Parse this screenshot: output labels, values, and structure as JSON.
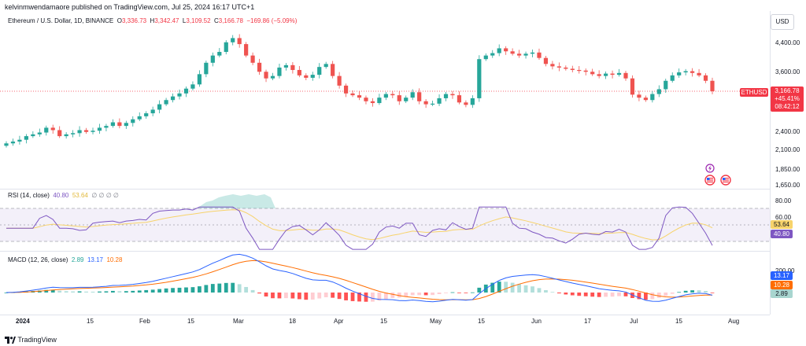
{
  "publisher_line": "kelvinmwendamaore published on TradingView.com, Jul 25, 2024 16:17 UTC+1",
  "main_legend": {
    "symbol": "Ethereum / U.S. Dollar, 1D, BINANCE",
    "o_key": "O",
    "o": "3,336.73",
    "h_key": "H",
    "h": "3,342.47",
    "l_key": "L",
    "l": "3,109.52",
    "c_key": "C",
    "c": "3,166.78",
    "chg": "−169.86 (−5.09%)"
  },
  "currency_button": "USD",
  "price_axis": [
    "4,400.00",
    "3,600.00",
    "2,400.00",
    "2,100.00",
    "1,850.00",
    "1,650.00"
  ],
  "price_tag": {
    "symbol": "ETHUSD",
    "price": "3,166.78",
    "change": "+45.41%",
    "countdown": "08:42:12"
  },
  "rsi": {
    "title": "RSI (14, close)",
    "rsi_val": "40.80",
    "ma_val": "53.64",
    "extras": "∅ ∅ ∅ ∅",
    "axis": [
      "80.00",
      "60.00"
    ],
    "tag_ma": "53.64",
    "tag_rsi": "40.80"
  },
  "macd": {
    "title": "MACD (12, 26, close)",
    "hist": "2.89",
    "macd": "13.17",
    "signal": "10.28",
    "axis": [
      "200.00"
    ],
    "tag_macd": "13.17",
    "tag_signal": "10.28",
    "tag_hist": "2.89"
  },
  "time_axis": [
    "2024",
    "15",
    "Feb",
    "15",
    "Mar",
    "18",
    "Apr",
    "15",
    "May",
    "15",
    "Jun",
    "17",
    "Jul",
    "15",
    "Aug"
  ],
  "footer": "TradingView",
  "colors": {
    "up": "#26a69a",
    "down": "#ef5350",
    "rsi": "#7e57c2",
    "rsi_ma": "#f7d36b",
    "macd": "#2962ff",
    "signal": "#ff6d00"
  },
  "chart_data": {
    "type": "candlestick",
    "symbol": "ETHUSD",
    "close_series": [
      2300,
      2330,
      2360,
      2420,
      2450,
      2480,
      2560,
      2520,
      2420,
      2450,
      2470,
      2520,
      2490,
      2510,
      2560,
      2590,
      2650,
      2590,
      2640,
      2700,
      2750,
      2800,
      2860,
      2950,
      3020,
      3080,
      3130,
      3210,
      3280,
      3450,
      3640,
      3760,
      3820,
      3980,
      4050,
      3950,
      3760,
      3640,
      3490,
      3380,
      3420,
      3560,
      3600,
      3520,
      3430,
      3390,
      3440,
      3570,
      3620,
      3420,
      3260,
      3130,
      3100,
      3060,
      3000,
      2970,
      3060,
      3120,
      3100,
      3000,
      3060,
      3150,
      3000,
      2950,
      2960,
      3050,
      3120,
      3100,
      2980,
      2940,
      3050,
      3700,
      3760,
      3800,
      3880,
      3830,
      3790,
      3760,
      3790,
      3810,
      3720,
      3620,
      3580,
      3560,
      3540,
      3520,
      3510,
      3490,
      3450,
      3420,
      3460,
      3440,
      3470,
      3380,
      3110,
      3060,
      3020,
      3120,
      3200,
      3340,
      3430,
      3480,
      3500,
      3470,
      3430,
      3340,
      3166.78
    ],
    "current_price": 3166.78
  }
}
